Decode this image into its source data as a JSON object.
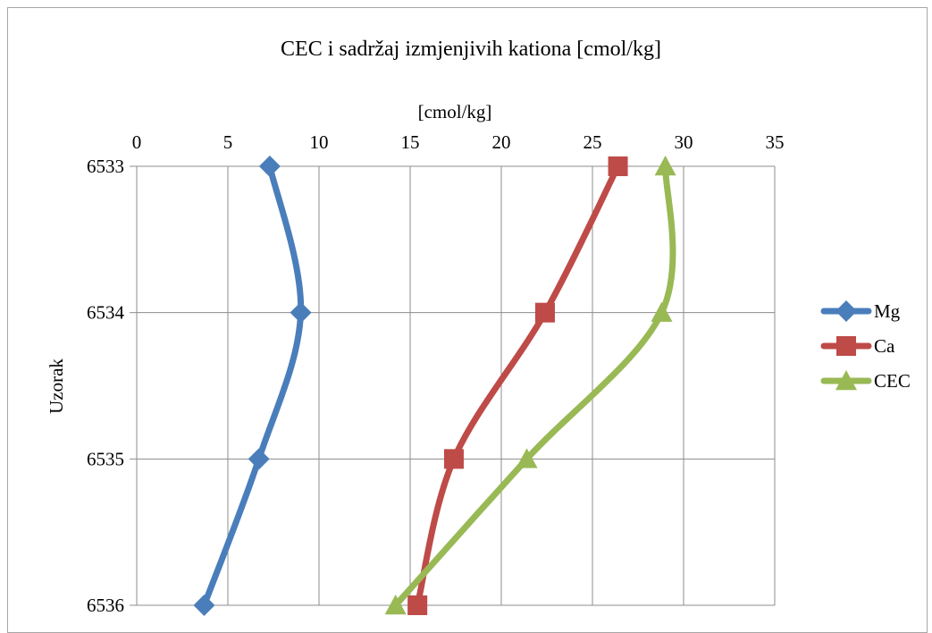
{
  "chart_data": {
    "type": "line",
    "title": "CEC  i sadržaj izmjenjivih kationa [cmol/kg]",
    "xlabel": "[cmol/kg]",
    "ylabel": "Uzorak",
    "xlim": [
      0,
      35
    ],
    "x_ticks": [
      "0",
      "5",
      "10",
      "15",
      "20",
      "25",
      "30",
      "35"
    ],
    "x_axis_position": "top",
    "categories": [
      "6533",
      "6534",
      "6535",
      "6536"
    ],
    "grid": true,
    "smoothed": true,
    "legend_position": "right",
    "series": [
      {
        "name": "Mg",
        "color": "#4a7ebb",
        "marker": "diamond",
        "values": [
          7.3,
          9.0,
          6.7,
          3.7
        ]
      },
      {
        "name": "Ca",
        "color": "#be4b48",
        "marker": "square",
        "values": [
          26.4,
          22.4,
          17.4,
          15.4
        ]
      },
      {
        "name": "CEC",
        "color": "#98b954",
        "marker": "triangle",
        "values": [
          29.0,
          28.8,
          21.4,
          14.2
        ]
      }
    ]
  }
}
